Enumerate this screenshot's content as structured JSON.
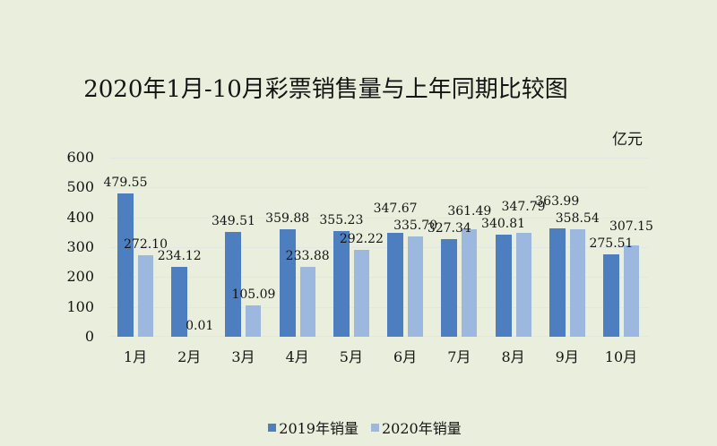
{
  "chart_data": {
    "type": "bar",
    "title": "2020年1月-10月彩票销售量与上年同期比较图",
    "unit_label": "亿元",
    "xlabel": "",
    "ylabel": "",
    "ylim": [
      0,
      600
    ],
    "ytick_step": 100,
    "grid": "horizontal",
    "legend_position": "bottom",
    "value_label_decimals": 2,
    "categories": [
      "1月",
      "2月",
      "3月",
      "4月",
      "5月",
      "6月",
      "7月",
      "8月",
      "9月",
      "10月"
    ],
    "series": [
      {
        "name": "2019年销量",
        "color": "#4d7ebf",
        "values": [
          479.55,
          234.12,
          349.51,
          359.88,
          355.23,
          347.67,
          327.34,
          340.81,
          363.99,
          275.51
        ]
      },
      {
        "name": "2020年销量",
        "color": "#9cb8de",
        "values": [
          272.1,
          0.01,
          105.09,
          233.88,
          292.22,
          335.7,
          361.49,
          347.79,
          358.54,
          307.15
        ]
      }
    ],
    "colors": {
      "background": "#eaeedc",
      "gridline": "#e3e7e3",
      "text": "#141414"
    }
  }
}
